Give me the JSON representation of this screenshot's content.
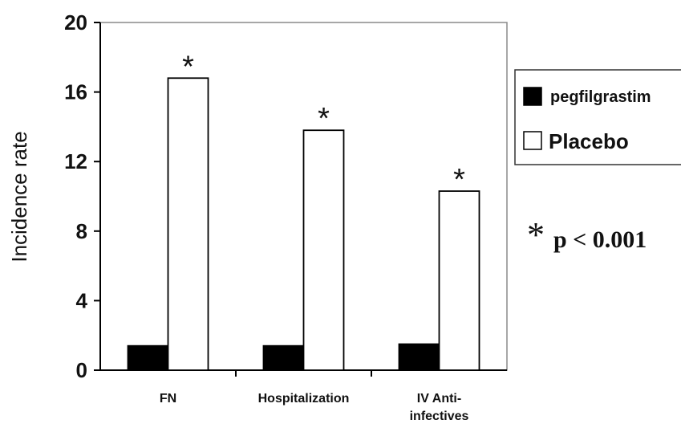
{
  "chart_data": {
    "type": "bar",
    "categories": [
      [
        "FN"
      ],
      [
        "Hospitalization"
      ],
      [
        "IV Anti-",
        "infectives"
      ]
    ],
    "series": [
      {
        "name": "pegfilgrastim",
        "color": "#000000",
        "values": [
          1.4,
          1.4,
          1.5
        ]
      },
      {
        "name": "Placebo",
        "color": "#ffffff",
        "values": [
          16.8,
          13.8,
          10.3
        ]
      }
    ],
    "ylabel": "Incidence rate",
    "xlabel": "",
    "ylim": [
      0,
      20
    ],
    "yticks": [
      0,
      4,
      8,
      12,
      16,
      20
    ],
    "significance_marker": "*",
    "annotation": {
      "symbol": "*",
      "text": "p < 0.001"
    },
    "legend_position": "right"
  }
}
